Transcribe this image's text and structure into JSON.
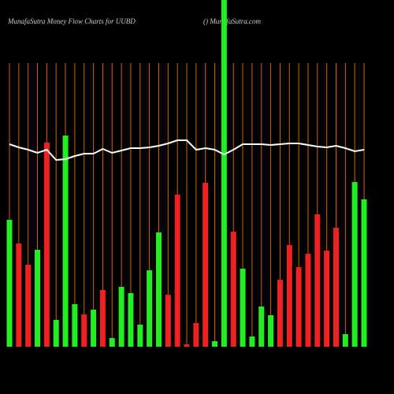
{
  "chart_data": {
    "type": "bar",
    "title": "MunafaSutra  Money Flow  Charts for UUBD",
    "subtitle": "() MunafaSutra.com",
    "ylim": [
      0,
      440
    ],
    "values": [
      161,
      131,
      104,
      123,
      259,
      34,
      268,
      54,
      41,
      47,
      72,
      11,
      76,
      68,
      28,
      97,
      145,
      66,
      193,
      3,
      30,
      208,
      7,
      440,
      146,
      99,
      13,
      51,
      40,
      85,
      129,
      101,
      118,
      168,
      122,
      151,
      16,
      209,
      187
    ],
    "colors": [
      "#22ee22",
      "#ee2222",
      "#ee2222",
      "#22ee22",
      "#ee2222",
      "#22ee22",
      "#22ee22",
      "#22ee22",
      "#ee2222",
      "#22ee22",
      "#ee2222",
      "#22ee22",
      "#22ee22",
      "#22ee22",
      "#22ee22",
      "#22ee22",
      "#22ee22",
      "#ee2222",
      "#ee2222",
      "#ee2222",
      "#ee2222",
      "#ee2222",
      "#22ee22",
      "#22ee22",
      "#ee2222",
      "#22ee22",
      "#22ee22",
      "#22ee22",
      "#22ee22",
      "#ee2222",
      "#ee2222",
      "#ee2222",
      "#ee2222",
      "#ee2222",
      "#ee2222",
      "#ee2222",
      "#22ee22",
      "#22ee22",
      "#22ee22"
    ],
    "line_values": [
      257,
      253,
      250,
      246,
      250,
      237,
      238,
      242,
      245,
      245,
      251,
      246,
      249,
      252,
      252,
      253,
      255,
      258,
      262,
      262,
      250,
      252,
      250,
      244,
      250,
      257,
      257,
      257,
      256,
      257,
      258,
      258,
      256,
      254,
      253,
      255,
      252,
      248,
      250
    ],
    "line_color": "#ffffff",
    "gridline_color": "#cc6600"
  }
}
